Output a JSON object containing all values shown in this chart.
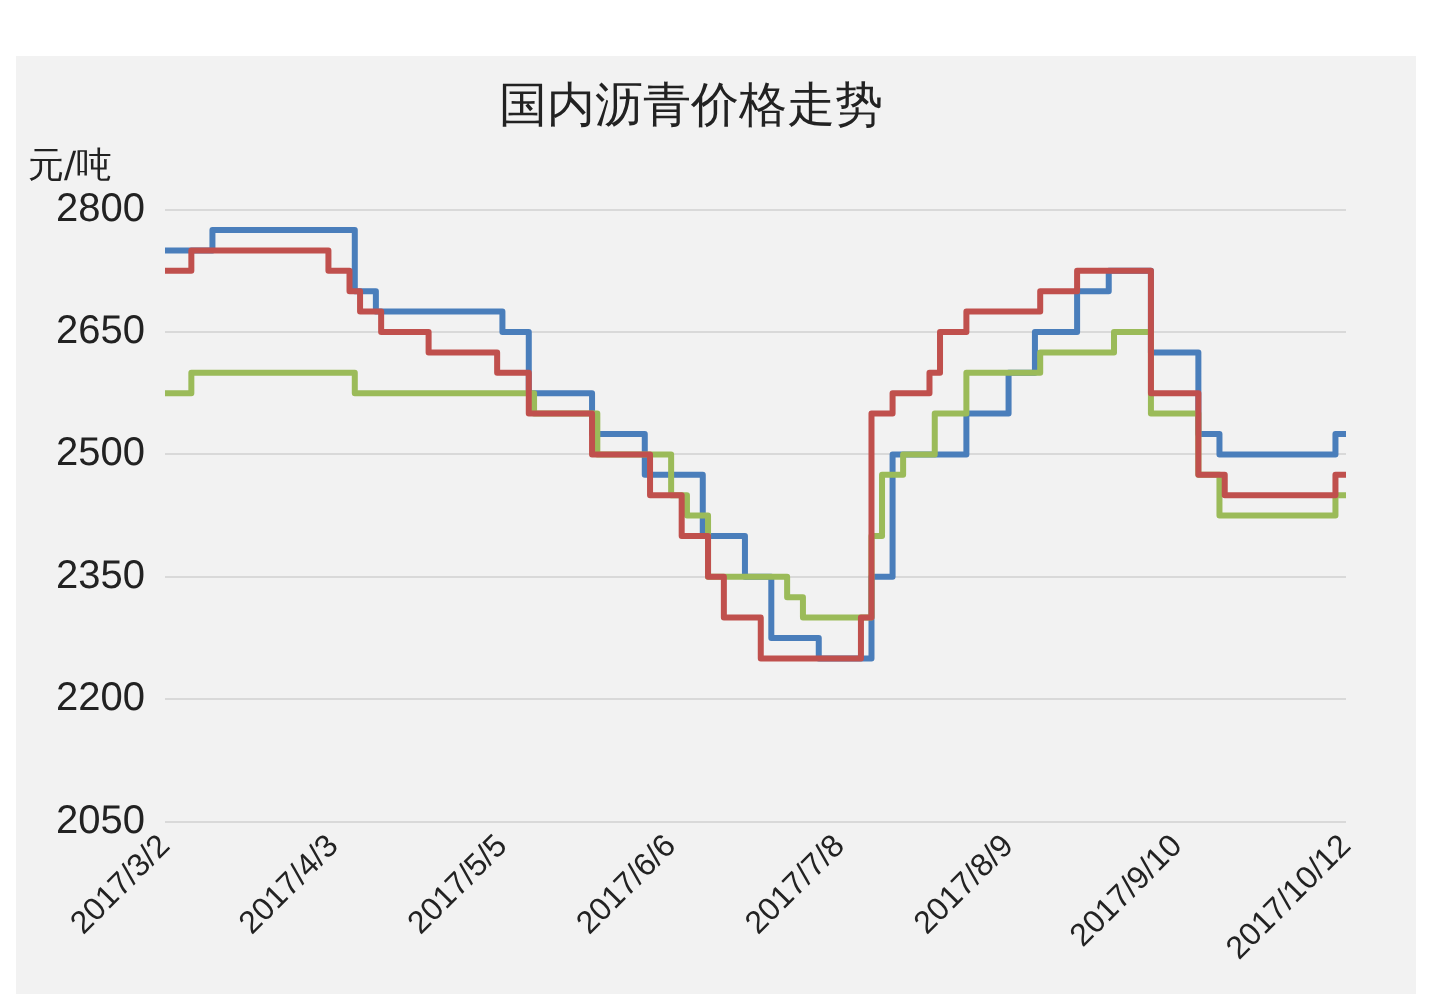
{
  "chart_data": {
    "type": "step",
    "title": "国内沥青价格走势",
    "ylabel": "元/吨",
    "xlim": [
      "2017-03-02",
      "2017-10-12"
    ],
    "xticks": [
      {
        "value": "2017-03-02",
        "label": "2017/3/2"
      },
      {
        "value": "2017-04-03",
        "label": "2017/4/3"
      },
      {
        "value": "2017-05-05",
        "label": "2017/5/5"
      },
      {
        "value": "2017-06-06",
        "label": "2017/6/6"
      },
      {
        "value": "2017-07-08",
        "label": "2017/7/8"
      },
      {
        "value": "2017-08-09",
        "label": "2017/8/9"
      },
      {
        "value": "2017-09-10",
        "label": "2017/9/10"
      },
      {
        "value": "2017-10-12",
        "label": "2017/10/12"
      }
    ],
    "ylim": [
      2050,
      2800
    ],
    "yticks": [
      2050,
      2200,
      2350,
      2500,
      2650,
      2800
    ],
    "grid": "y",
    "legend": false,
    "marker": "none",
    "line_style": "solid",
    "series": [
      {
        "color": "#c0504d",
        "x": [
          "2017-03-02",
          "2017-03-07",
          "2017-04-02",
          "2017-04-06",
          "2017-04-08",
          "2017-04-12",
          "2017-04-21",
          "2017-05-04",
          "2017-05-10",
          "2017-05-22",
          "2017-06-02",
          "2017-06-08",
          "2017-06-13",
          "2017-06-16",
          "2017-06-23",
          "2017-07-12",
          "2017-07-14",
          "2017-07-18",
          "2017-07-25",
          "2017-07-27",
          "2017-08-01",
          "2017-08-15",
          "2017-08-22",
          "2017-09-05",
          "2017-09-14",
          "2017-09-19",
          "2017-10-10",
          "2017-10-12"
        ],
        "values": [
          2725,
          2750,
          2725,
          2700,
          2675,
          2650,
          2625,
          2600,
          2550,
          2500,
          2450,
          2400,
          2350,
          2300,
          2250,
          2300,
          2550,
          2575,
          2600,
          2650,
          2675,
          2700,
          2725,
          2575,
          2475,
          2450,
          2475,
          2475
        ]
      },
      {
        "color": "#9bbb59",
        "x": [
          "2017-03-02",
          "2017-03-07",
          "2017-04-07",
          "2017-05-11",
          "2017-05-23",
          "2017-06-06",
          "2017-06-09",
          "2017-06-13",
          "2017-06-28",
          "2017-07-01",
          "2017-07-14",
          "2017-07-16",
          "2017-07-20",
          "2017-07-26",
          "2017-08-01",
          "2017-08-15",
          "2017-08-29",
          "2017-09-05",
          "2017-09-14",
          "2017-09-18",
          "2017-10-10",
          "2017-10-12"
        ],
        "values": [
          2575,
          2600,
          2575,
          2550,
          2500,
          2450,
          2425,
          2350,
          2325,
          2300,
          2400,
          2475,
          2500,
          2550,
          2600,
          2625,
          2650,
          2550,
          2475,
          2425,
          2450,
          2450
        ]
      },
      {
        "color": "#4a7ebb",
        "x": [
          "2017-03-02",
          "2017-03-11",
          "2017-04-07",
          "2017-04-11",
          "2017-05-05",
          "2017-05-10",
          "2017-05-22",
          "2017-06-01",
          "2017-06-12",
          "2017-06-20",
          "2017-06-25",
          "2017-07-04",
          "2017-07-14",
          "2017-07-18",
          "2017-08-01",
          "2017-08-09",
          "2017-08-14",
          "2017-08-22",
          "2017-08-28",
          "2017-09-05",
          "2017-09-14",
          "2017-09-18",
          "2017-10-10",
          "2017-10-12"
        ],
        "values": [
          2750,
          2775,
          2700,
          2675,
          2650,
          2575,
          2525,
          2475,
          2400,
          2350,
          2275,
          2250,
          2350,
          2500,
          2550,
          2600,
          2650,
          2700,
          2725,
          2625,
          2525,
          2500,
          2525,
          2525
        ]
      }
    ]
  }
}
